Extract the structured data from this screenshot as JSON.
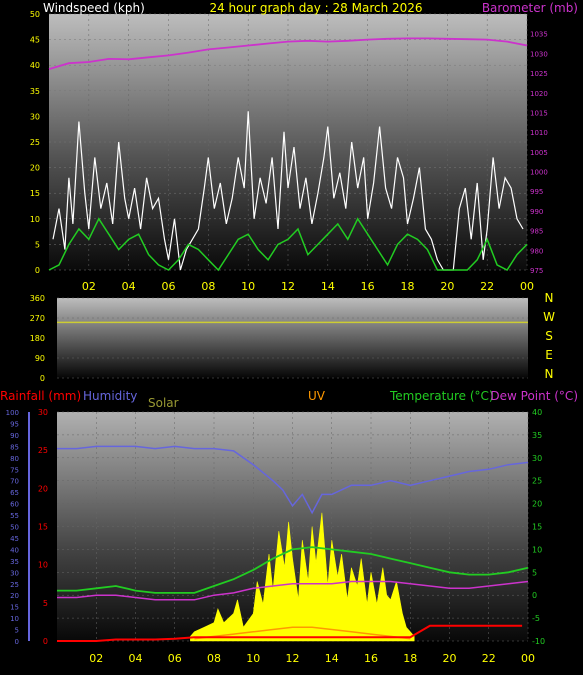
{
  "header": {
    "left_title": "Windspeed (kph)",
    "center_title": "24 hour graph day : 28 March 2026",
    "right_title": "Barometer (mb)"
  },
  "x_axis": {
    "tick_labels": [
      "02",
      "04",
      "06",
      "08",
      "10",
      "12",
      "14",
      "16",
      "18",
      "20",
      "22",
      "00"
    ]
  },
  "wind_panel": {
    "y_ticks": [
      "0",
      "5",
      "10",
      "15",
      "20",
      "25",
      "30",
      "35",
      "40",
      "45",
      "50"
    ],
    "baro_ticks": [
      "975",
      "980",
      "985",
      "990",
      "995",
      "1000",
      "1005",
      "1010",
      "1015",
      "1020",
      "1025",
      "1030",
      "1035"
    ]
  },
  "dir_panel": {
    "y_ticks": [
      "0",
      "90",
      "180",
      "270",
      "360"
    ],
    "compass": [
      "N",
      "W",
      "S",
      "E",
      "N"
    ]
  },
  "bottom_panel": {
    "labels": {
      "rainfall": "Rainfall (mm)",
      "humidity": "Humidity",
      "solar": "Solar",
      "uv": "UV",
      "temperature": "Temperature (°C)",
      "dewpoint": "Dew Point (°C)"
    },
    "humidity_ticks": [
      "0",
      "5",
      "10",
      "15",
      "20",
      "25",
      "30",
      "35",
      "40",
      "45",
      "50",
      "55",
      "60",
      "65",
      "70",
      "75",
      "80",
      "85",
      "90",
      "95",
      "100"
    ],
    "rain_ticks": [
      "0",
      "5",
      "10",
      "15",
      "20",
      "25",
      "30"
    ],
    "temp_ticks": [
      "-10",
      "-5",
      "0",
      "5",
      "10",
      "15",
      "20",
      "25",
      "30",
      "35",
      "40"
    ]
  },
  "colors": {
    "wind_gust": "#ffffff",
    "wind_avg": "#22cc22",
    "barometer": "#cc33cc",
    "direction": "#cccc33",
    "rainfall": "#ff0000",
    "humidity": "#6666dd",
    "solar": "#ffff00",
    "uv": "#ff9900",
    "temperature": "#22cc22",
    "dewpoint": "#cc33cc",
    "axis_text": "#ffff00"
  },
  "chart_data": [
    {
      "type": "line",
      "panel": "wind",
      "x_unit": "hour",
      "xlim": [
        0,
        24
      ],
      "ylim": [
        0,
        50
      ],
      "y2lim": [
        975,
        1040
      ],
      "series": [
        {
          "name": "Windspeed (kph)",
          "axis": "left",
          "x": [
            0.2,
            0.5,
            0.8,
            1.0,
            1.2,
            1.5,
            1.8,
            2.0,
            2.3,
            2.6,
            2.9,
            3.2,
            3.5,
            3.8,
            4.0,
            4.3,
            4.6,
            4.9,
            5.2,
            5.5,
            5.8,
            6.0,
            6.3,
            6.6,
            6.9,
            7.2,
            7.5,
            7.8,
            8.0,
            8.3,
            8.6,
            8.9,
            9.2,
            9.5,
            9.8,
            10.0,
            10.3,
            10.6,
            10.9,
            11.2,
            11.5,
            11.8,
            12.0,
            12.3,
            12.6,
            12.9,
            13.2,
            13.5,
            13.8,
            14.0,
            14.3,
            14.6,
            14.9,
            15.2,
            15.5,
            15.8,
            16.0,
            16.3,
            16.6,
            16.9,
            17.2,
            17.5,
            17.8,
            18.0,
            18.3,
            18.6,
            18.9,
            19.2,
            19.5,
            19.8,
            20.0,
            20.3,
            20.6,
            20.9,
            21.2,
            21.5,
            21.8,
            22.0,
            22.3,
            22.6,
            22.9,
            23.2,
            23.5,
            23.8
          ],
          "values": [
            6,
            12,
            4,
            18,
            9,
            29,
            15,
            8,
            22,
            12,
            17,
            9,
            25,
            14,
            10,
            16,
            8,
            18,
            12,
            14,
            6,
            2,
            10,
            0,
            4,
            6,
            8,
            16,
            22,
            12,
            17,
            9,
            14,
            22,
            16,
            31,
            10,
            18,
            13,
            22,
            8,
            27,
            16,
            24,
            12,
            18,
            9,
            15,
            22,
            28,
            14,
            19,
            12,
            25,
            16,
            22,
            10,
            17,
            28,
            16,
            12,
            22,
            18,
            9,
            14,
            20,
            8,
            6,
            2,
            0,
            0,
            0,
            12,
            16,
            6,
            17,
            2,
            8,
            22,
            12,
            18,
            16,
            10,
            8
          ]
        },
        {
          "name": "Average wind",
          "axis": "left",
          "x": [
            0.0,
            0.5,
            1.0,
            1.5,
            2.0,
            2.5,
            3.0,
            3.5,
            4.0,
            4.5,
            5.0,
            5.5,
            6.0,
            6.5,
            7.0,
            7.5,
            8.0,
            8.5,
            9.0,
            9.5,
            10.0,
            10.5,
            11.0,
            11.5,
            12.0,
            12.5,
            13.0,
            13.5,
            14.0,
            14.5,
            15.0,
            15.5,
            16.0,
            16.5,
            17.0,
            17.5,
            18.0,
            18.5,
            19.0,
            19.5,
            20.0,
            20.5,
            21.0,
            21.5,
            22.0,
            22.5,
            23.0,
            23.5,
            24.0
          ],
          "values": [
            0,
            1,
            5,
            8,
            6,
            10,
            7,
            4,
            6,
            7,
            3,
            1,
            0,
            2,
            5,
            4,
            2,
            0,
            3,
            6,
            7,
            4,
            2,
            5,
            6,
            8,
            3,
            5,
            7,
            9,
            6,
            10,
            7,
            4,
            1,
            5,
            7,
            6,
            4,
            0,
            0,
            0,
            0,
            2,
            6,
            1,
            0,
            3,
            5
          ]
        },
        {
          "name": "Barometer (mb)",
          "axis": "right",
          "x": [
            0,
            1,
            2,
            3,
            4,
            5,
            6,
            7,
            8,
            9,
            10,
            11,
            12,
            13,
            14,
            15,
            16,
            17,
            18,
            19,
            20,
            21,
            22,
            23,
            24
          ],
          "values": [
            1026.0,
            1027.5,
            1027.8,
            1028.6,
            1028.5,
            1029.0,
            1029.5,
            1030.2,
            1031.0,
            1031.5,
            1032.0,
            1032.5,
            1033.0,
            1033.2,
            1033.0,
            1033.2,
            1033.5,
            1033.7,
            1033.8,
            1033.8,
            1033.7,
            1033.6,
            1033.5,
            1033.0,
            1032.0
          ]
        }
      ]
    },
    {
      "type": "line",
      "panel": "wind_direction",
      "x_unit": "hour",
      "xlim": [
        0,
        24
      ],
      "ylim": [
        0,
        360
      ],
      "series": [
        {
          "name": "Wind direction",
          "x": [
            0,
            24
          ],
          "values": [
            250,
            250
          ]
        }
      ]
    },
    {
      "type": "line",
      "panel": "climate",
      "x_unit": "hour",
      "xlim": [
        0,
        24
      ],
      "humidity_lim": [
        0,
        100
      ],
      "rain_lim": [
        0,
        30
      ],
      "temp_lim": [
        -10,
        40
      ],
      "series": [
        {
          "name": "Humidity",
          "axis": "humidity",
          "x": [
            0,
            1,
            2,
            3,
            4,
            5,
            6,
            7,
            8,
            9,
            10,
            11,
            11.5,
            12,
            12.5,
            13,
            13.5,
            14,
            15,
            16,
            17,
            18,
            19,
            20,
            21,
            22,
            23,
            24
          ],
          "values": [
            84,
            84,
            85,
            85,
            85,
            84,
            85,
            84,
            84,
            83,
            77,
            70,
            66,
            59,
            64,
            56,
            64,
            64,
            68,
            68,
            70,
            68,
            70,
            72,
            74,
            75,
            77,
            78
          ]
        },
        {
          "name": "Temperature (°C)",
          "axis": "temp",
          "x": [
            0,
            1,
            2,
            3,
            4,
            5,
            6,
            7,
            8,
            9,
            10,
            11,
            12,
            13,
            14,
            15,
            16,
            17,
            18,
            19,
            20,
            21,
            22,
            23,
            24
          ],
          "values": [
            1,
            1,
            1.5,
            2,
            1,
            0.5,
            0.5,
            0.5,
            2,
            3.5,
            5.5,
            8,
            10,
            10.5,
            10,
            9.5,
            9,
            8,
            7,
            6,
            5,
            4.5,
            4.5,
            5,
            6
          ]
        },
        {
          "name": "Dew Point (°C)",
          "axis": "temp",
          "x": [
            0,
            1,
            2,
            3,
            4,
            5,
            6,
            7,
            8,
            9,
            10,
            11,
            12,
            13,
            14,
            15,
            16,
            17,
            18,
            19,
            20,
            21,
            22,
            23,
            24
          ],
          "values": [
            -0.5,
            -0.5,
            0,
            0,
            -0.5,
            -1,
            -1,
            -1,
            0,
            0.5,
            1.5,
            2,
            2.5,
            2.5,
            2.5,
            3,
            3,
            3,
            2.5,
            2,
            1.5,
            1.5,
            2,
            2.5,
            3
          ]
        },
        {
          "name": "Rainfall (mm)",
          "axis": "rain",
          "x": [
            0,
            1,
            2,
            3,
            4,
            5,
            6,
            7,
            8,
            9,
            10,
            11,
            12,
            13,
            14,
            15,
            16,
            17,
            18,
            19,
            20,
            21,
            22,
            23,
            23.7
          ],
          "values": [
            0,
            0,
            0,
            0.2,
            0.2,
            0.2,
            0.3,
            0.5,
            0.5,
            0.5,
            0.5,
            0.5,
            0.5,
            0.5,
            0.5,
            0.5,
            0.5,
            0.5,
            0.5,
            2,
            2,
            2,
            2,
            2,
            2
          ]
        },
        {
          "name": "Solar",
          "axis": "temp",
          "style": "area",
          "x": [
            6.8,
            7.0,
            7.5,
            8.0,
            8.2,
            8.5,
            9.0,
            9.2,
            9.5,
            10.0,
            10.2,
            10.5,
            10.8,
            11.0,
            11.3,
            11.6,
            11.8,
            12.0,
            12.3,
            12.5,
            12.8,
            13.0,
            13.2,
            13.5,
            13.8,
            14.0,
            14.3,
            14.5,
            14.8,
            15.0,
            15.3,
            15.5,
            15.8,
            16.0,
            16.3,
            16.6,
            16.8,
            17.0,
            17.3,
            17.6,
            17.8,
            18.0,
            18.2
          ],
          "values": [
            -9,
            -8,
            -7,
            -6,
            -3,
            -6,
            -4,
            -1,
            -7,
            -4,
            3,
            -2,
            9,
            1,
            14,
            6,
            16,
            8,
            -1,
            12,
            3,
            15,
            7,
            18,
            2,
            12,
            4,
            9,
            -1,
            6,
            2,
            8,
            -2,
            5,
            -2,
            6,
            0,
            -1,
            3,
            -4,
            -7,
            -8,
            -9
          ]
        },
        {
          "name": "UV",
          "axis": "temp",
          "x": [
            7,
            8,
            9,
            10,
            11,
            12,
            13,
            14,
            15,
            16,
            17,
            18
          ],
          "values": [
            -9.5,
            -9,
            -8.5,
            -8,
            -7.5,
            -7,
            -7,
            -7.5,
            -8,
            -8.5,
            -9,
            -9.5
          ]
        }
      ]
    }
  ]
}
